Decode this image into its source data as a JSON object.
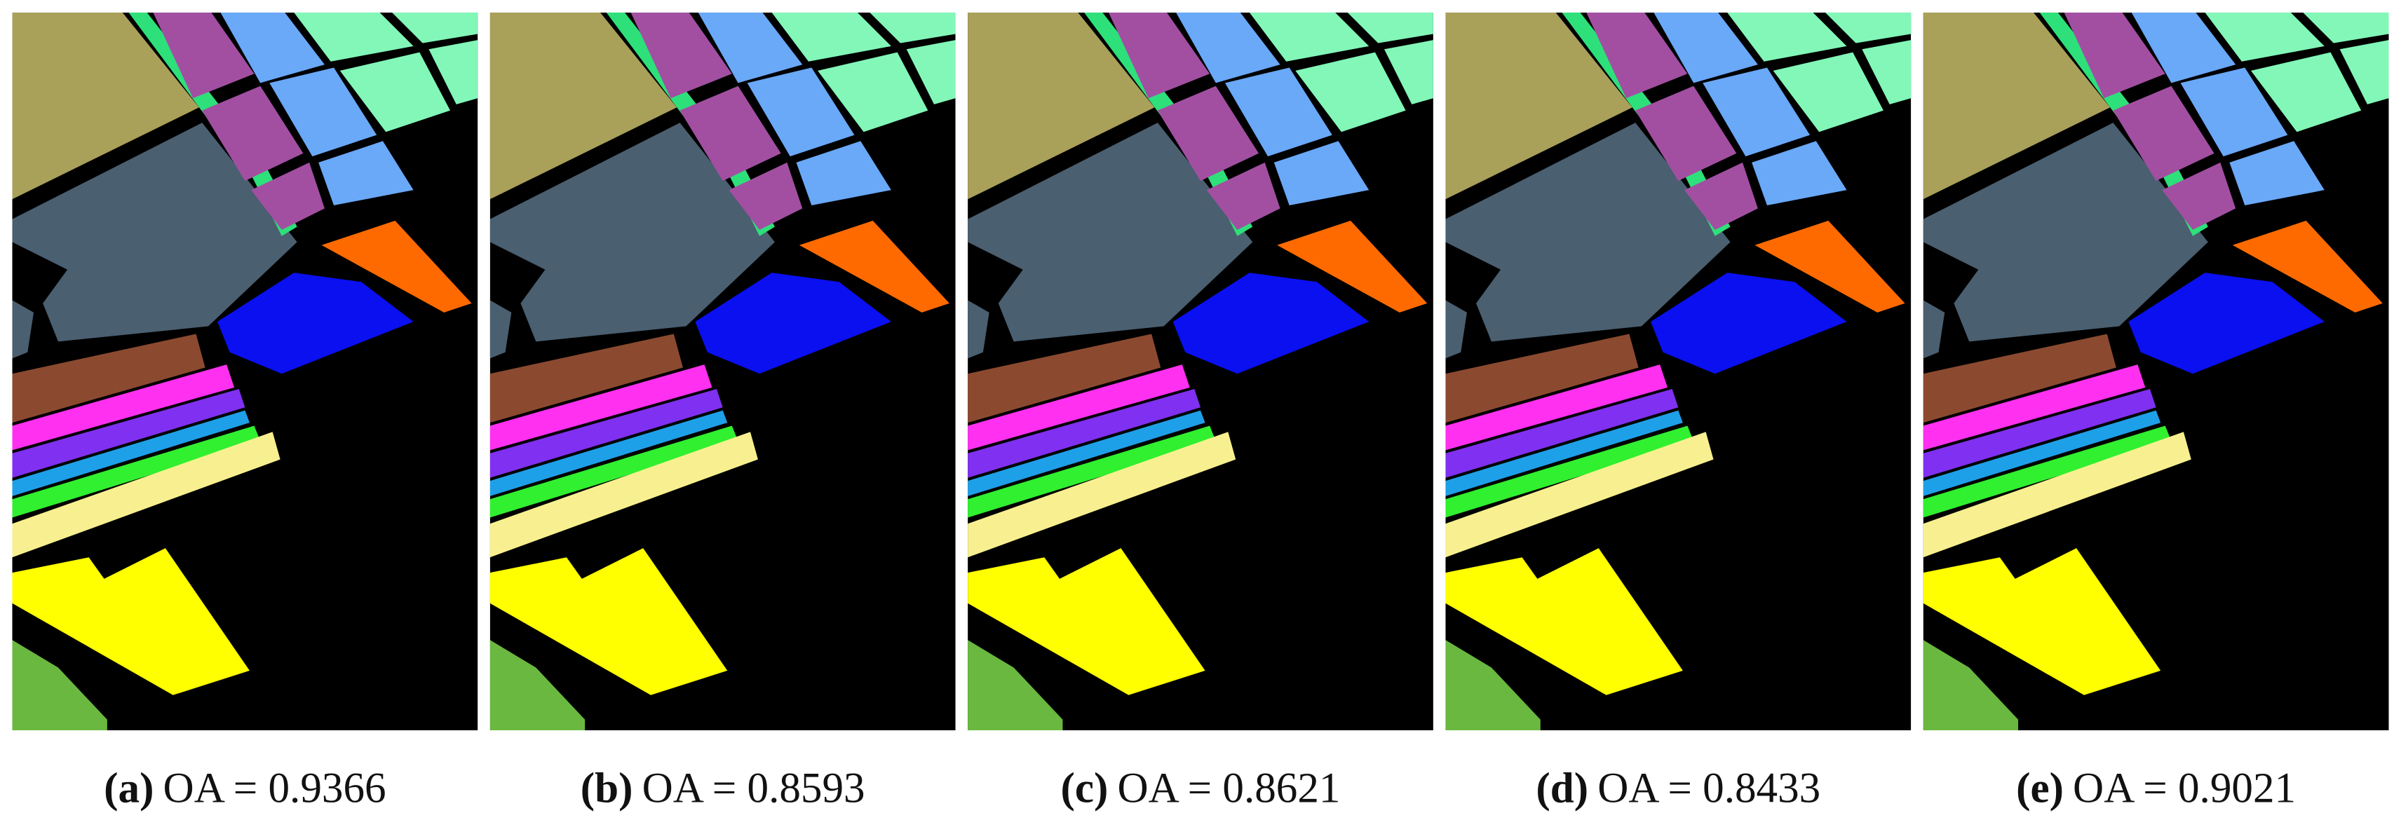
{
  "panels": [
    {
      "label": "(a)",
      "caption": "OA = 0.9366"
    },
    {
      "label": "(b)",
      "caption": "OA = 0.8593"
    },
    {
      "label": "(c)",
      "caption": "OA = 0.8621"
    },
    {
      "label": "(d)",
      "caption": "OA = 0.8433"
    },
    {
      "label": "(e)",
      "caption": "OA = 0.9021"
    }
  ]
}
